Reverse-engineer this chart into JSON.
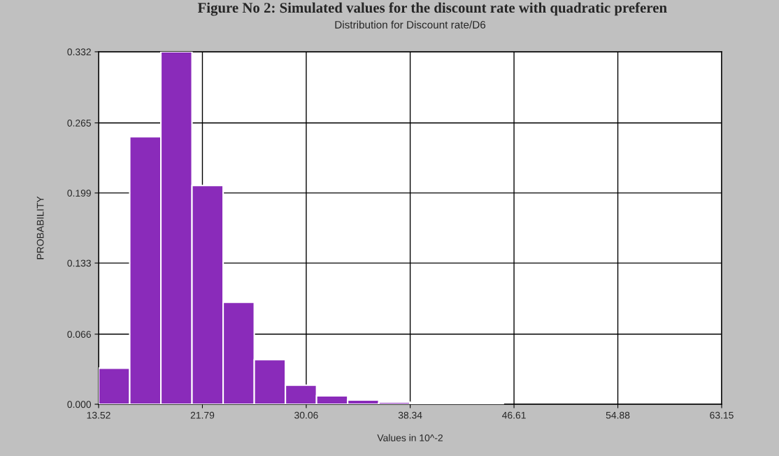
{
  "chart_data": {
    "type": "histogram",
    "title": "Distribution for Discount rate/D6",
    "xlabel": "Values in 10^-2",
    "ylabel": "PROBABILITY",
    "annotations": [
      "Figure No 2: Simulated values for the discount rate with quadratic preferen"
    ],
    "bins": [
      13.52,
      16.0,
      18.48,
      20.96,
      23.44,
      25.92,
      28.4,
      30.88,
      33.36,
      35.84,
      38.32,
      40.8,
      43.28,
      45.76
    ],
    "values": [
      0.034,
      0.252,
      0.332,
      0.206,
      0.096,
      0.042,
      0.018,
      0.008,
      0.004,
      0.002,
      0.0013,
      0.001,
      0.0007
    ],
    "color": "#8a2bba",
    "xlim": [
      13.52,
      63.15
    ],
    "xticks": [
      13.52,
      21.79,
      30.06,
      38.34,
      46.61,
      54.88,
      63.15
    ],
    "ylim": [
      0,
      0.332
    ],
    "yticks": [
      {
        "value": 0,
        "label": "0.000"
      },
      0.066,
      0.133,
      0.199,
      0.265,
      0.332
    ],
    "grid": true
  }
}
